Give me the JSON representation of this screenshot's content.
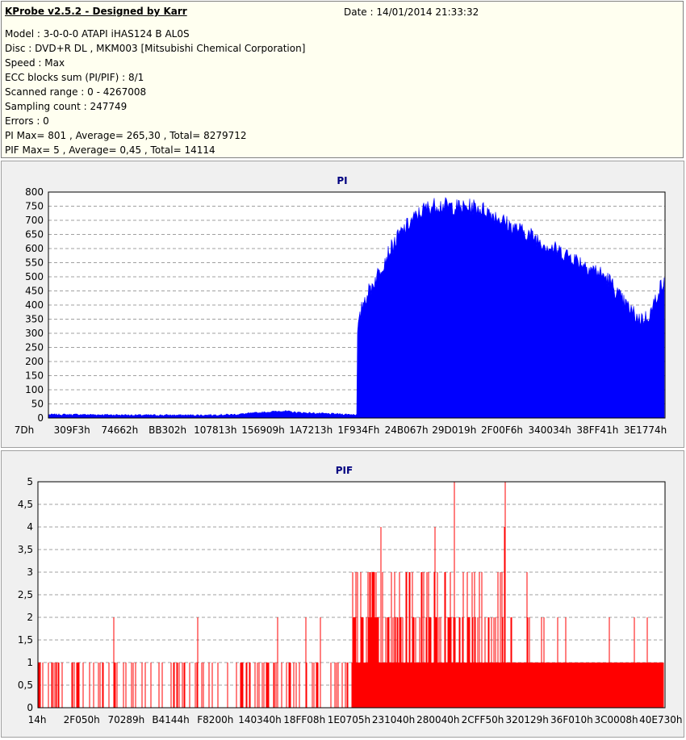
{
  "header": {
    "app_title": "KProbe v2.5.2 - Designed by Karr",
    "date": "Date : 14/01/2014 21:33:32",
    "lines": [
      "Model : 3-0-0-0 ATAPI   iHAS124   B      AL0S",
      "Disc : DVD+R DL , MKM003 [Mitsubishi Chemical Corporation]",
      "Speed : Max",
      "ECC blocks sum (PI/PIF) : 8/1",
      "Scanned range : 0 - 4267008",
      "Sampling count : 247749",
      "Errors : 0",
      "PI Max= 801 , Average= 265,30 , Total= 8279712",
      "PIF Max= 5 , Average= 0,45 , Total= 14114"
    ]
  },
  "colors": {
    "pi": "#0000ff",
    "pif": "#ff0000",
    "title": "#000080"
  },
  "chart_data": [
    {
      "type": "area",
      "title": "PI",
      "ylim": [
        0,
        800
      ],
      "yticks": [
        0,
        50,
        100,
        150,
        200,
        250,
        300,
        350,
        400,
        450,
        500,
        550,
        600,
        650,
        700,
        750,
        800
      ],
      "xtick_labels": [
        "7Dh",
        "309F3h",
        "74662h",
        "BB302h",
        "107813h",
        "156909h",
        "1A7213h",
        "1F934Fh",
        "24B067h",
        "29D019h",
        "2F00F6h",
        "340034h",
        "38FF41h",
        "3E1774h"
      ],
      "grid": true,
      "series": [
        {
          "x_fraction": [
            0,
            0.05,
            0.1,
            0.15,
            0.2,
            0.25,
            0.3,
            0.35,
            0.38,
            0.4,
            0.45,
            0.5,
            0.5,
            0.51,
            0.53,
            0.55,
            0.57,
            0.59,
            0.61,
            0.63,
            0.65,
            0.67,
            0.69,
            0.71,
            0.73,
            0.75,
            0.77,
            0.79,
            0.81,
            0.83,
            0.85,
            0.87,
            0.89,
            0.91,
            0.93,
            0.95,
            0.96,
            0.97,
            0.98,
            0.99,
            1.0
          ],
          "values": [
            12,
            12,
            11,
            10,
            10,
            10,
            12,
            20,
            25,
            20,
            15,
            12,
            285,
            410,
            490,
            580,
            650,
            700,
            740,
            755,
            750,
            745,
            748,
            735,
            710,
            680,
            660,
            640,
            610,
            590,
            570,
            545,
            520,
            490,
            420,
            370,
            350,
            355,
            380,
            450,
            480
          ]
        }
      ]
    },
    {
      "type": "bar",
      "title": "PIF",
      "ylim": [
        0,
        5
      ],
      "yticks": [
        "0",
        "0,5",
        "1",
        "1,5",
        "2",
        "2,5",
        "3",
        "3,5",
        "4",
        "4,5",
        "5"
      ],
      "xtick_labels": [
        "14h",
        "2F050h",
        "70289h",
        "B4144h",
        "F8200h",
        "140340h",
        "18FF08h",
        "1E0705h",
        "231040h",
        "280040h",
        "2CFF50h",
        "320129h",
        "36F010h",
        "3C0008h",
        "40E730h"
      ],
      "grid": true,
      "series": [
        {
          "x_fraction": [
            0.0,
            0.05,
            0.1,
            0.2,
            0.3,
            0.4,
            0.45,
            0.5,
            0.55,
            0.6,
            0.65,
            0.7,
            0.75,
            0.8,
            0.85,
            0.9,
            0.95,
            1.0
          ],
          "typical_values": [
            1,
            1,
            1,
            1,
            1,
            1,
            1,
            2,
            2,
            2,
            2,
            2,
            1,
            1,
            1,
            1,
            1,
            1
          ]
        }
      ]
    }
  ]
}
